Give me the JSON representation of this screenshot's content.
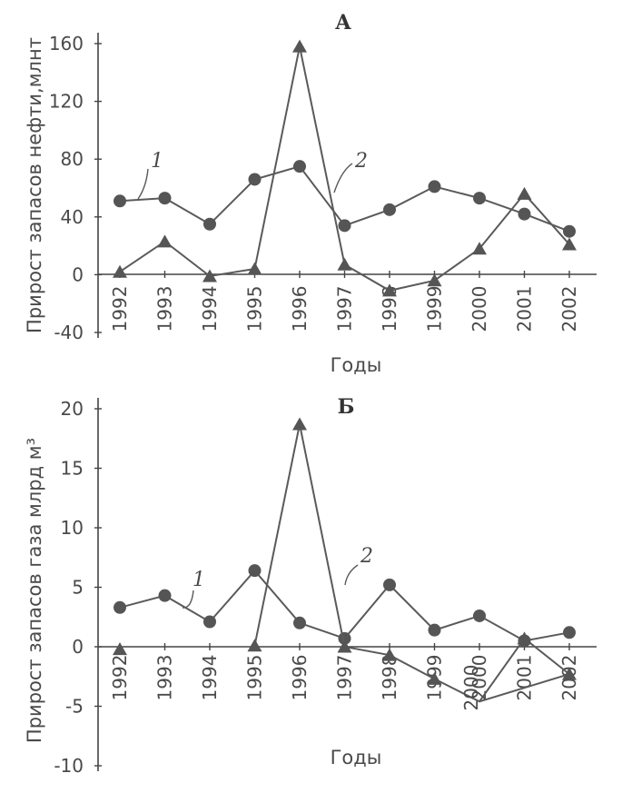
{
  "chart_data": [
    {
      "type": "line",
      "title": "А",
      "xlabel": "Годы",
      "ylabel": "Прирост запасов нефти,млнт",
      "categories": [
        "1992",
        "1993",
        "1994",
        "1995",
        "1996",
        "1997",
        "1998",
        "1999",
        "2000",
        "2001",
        "2002"
      ],
      "yticks": [
        "160",
        "120",
        "80",
        "40",
        "0",
        "-40"
      ],
      "ylim": [
        -40,
        160
      ],
      "series": [
        {
          "name": "1",
          "marker": "circle",
          "values": [
            51,
            53,
            35,
            66,
            75,
            34,
            45,
            61,
            53,
            42,
            30
          ]
        },
        {
          "name": "2",
          "marker": "triangle",
          "values": [
            2,
            23,
            -1,
            4,
            158,
            7,
            -11,
            -4,
            18,
            56,
            21
          ]
        }
      ],
      "grid": false,
      "colors": {
        "line": "#5a5a5a",
        "marker": "#555555",
        "text": "#4a4a4a"
      }
    },
    {
      "type": "line",
      "title": "Б",
      "xlabel": "Годы",
      "ylabel": "Прирост запасов газа млрд м³",
      "categories": [
        "1992",
        "1993",
        "1994",
        "1995",
        "1996",
        "1997",
        "1998",
        "1999",
        "2000",
        "2001",
        "2002"
      ],
      "yticks": [
        "20",
        "15",
        "10",
        "5",
        "0",
        "-5",
        "-10"
      ],
      "ylim": [
        -10,
        20
      ],
      "annotation": "2000",
      "series": [
        {
          "name": "1",
          "marker": "circle",
          "values": [
            3.3,
            4.3,
            2.1,
            6.4,
            2.0,
            0.7,
            5.2,
            1.4,
            2.6,
            0.5,
            1.2
          ]
        },
        {
          "name": "2",
          "marker": "triangle",
          "values": [
            -0.2,
            null,
            null,
            0.1,
            18.7,
            0.0,
            -0.7,
            -2.7,
            -4.6,
            0.7,
            -2.3
          ]
        }
      ],
      "grid": false,
      "colors": {
        "line": "#5a5a5a",
        "marker": "#555555",
        "text": "#4a4a4a"
      }
    }
  ]
}
